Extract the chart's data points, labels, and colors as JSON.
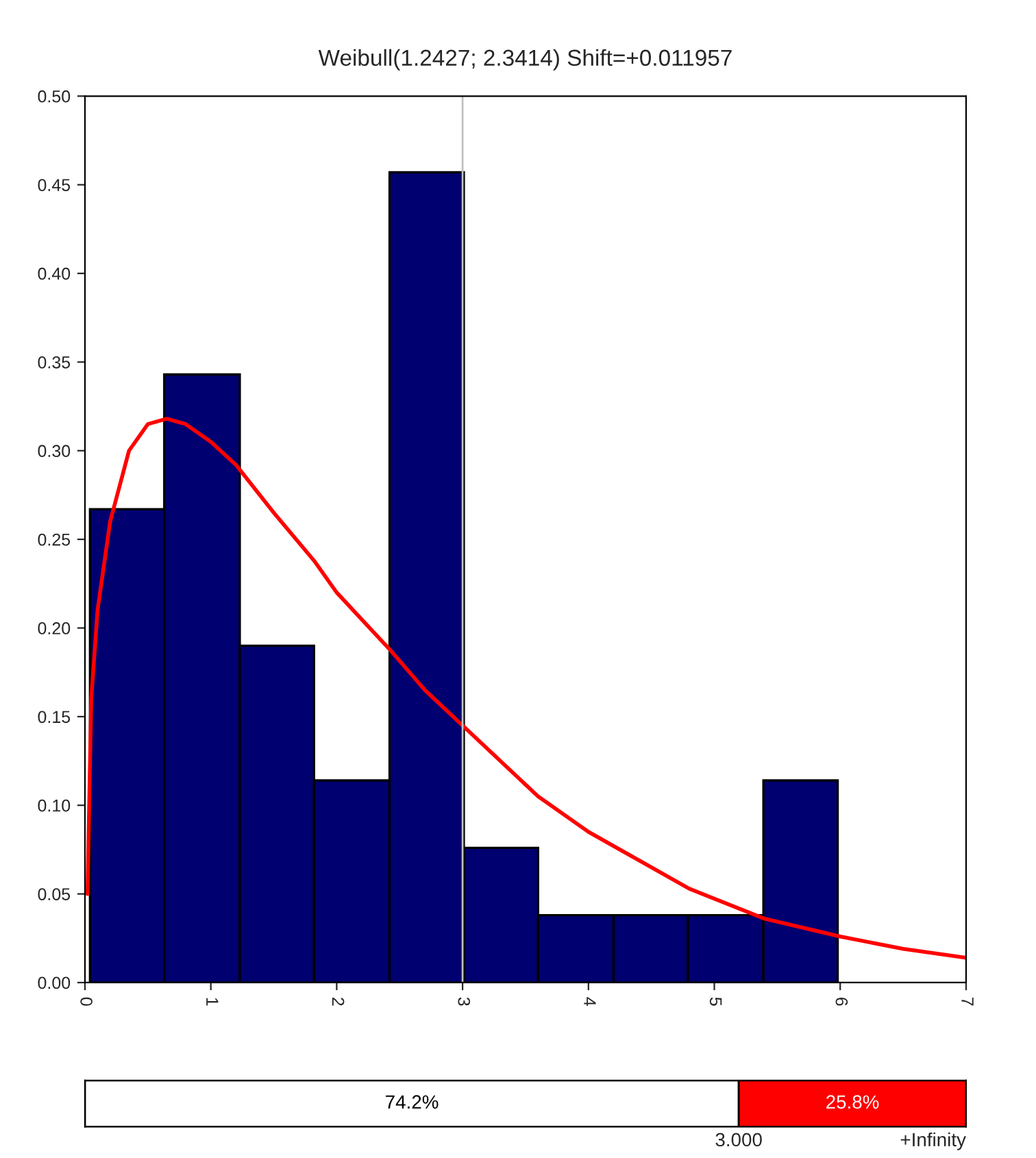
{
  "chart_data": [
    {
      "type": "histogram",
      "title": "Weibull(1.2427; 2.3414) Shift=+0.011957",
      "bins": [
        0.04,
        0.63,
        1.23,
        1.82,
        2.42,
        3.01,
        3.6,
        4.2,
        4.79,
        5.39,
        5.98
      ],
      "values": [
        0.267,
        0.343,
        0.19,
        0.114,
        0.457,
        0.076,
        0.038,
        0.038,
        0.038,
        0.114
      ],
      "color": "#000070",
      "series": [
        {
          "type": "line",
          "color": "#ff0000",
          "x": [
            0.02,
            0.05,
            0.1,
            0.2,
            0.35,
            0.5,
            0.65,
            0.8,
            1.0,
            1.2,
            1.5,
            1.82,
            2.0,
            2.42,
            2.7,
            3.0,
            3.3,
            3.6,
            4.0,
            4.2,
            4.8,
            5.4,
            6.0,
            6.5,
            7.0
          ],
          "values": [
            0.05,
            0.16,
            0.21,
            0.26,
            0.3,
            0.315,
            0.318,
            0.315,
            0.305,
            0.292,
            0.265,
            0.238,
            0.22,
            0.188,
            0.165,
            0.145,
            0.125,
            0.105,
            0.085,
            0.077,
            0.053,
            0.036,
            0.026,
            0.019,
            0.014
          ]
        }
      ],
      "xlim": [
        0,
        7
      ],
      "xticks": [
        0,
        1,
        2,
        3,
        4,
        5,
        6,
        7
      ],
      "ylim": [
        0,
        0.5
      ],
      "yticks": [
        {
          "value": 0,
          "label": "0.00"
        },
        {
          "value": 0.05,
          "label": "0.05"
        },
        {
          "value": 0.1,
          "label": "0.10"
        },
        {
          "value": 0.15,
          "label": "0.15"
        },
        {
          "value": 0.2,
          "label": "0.20"
        },
        {
          "value": 0.25,
          "label": "0.25"
        },
        {
          "value": 0.3,
          "label": "0.30"
        },
        {
          "value": 0.35,
          "label": "0.35"
        },
        {
          "value": 0.4,
          "label": "0.40"
        },
        {
          "value": 0.45,
          "label": "0.45"
        },
        {
          "value": 0.5,
          "label": "0.50"
        }
      ],
      "ref_lines": [
        {
          "axis": "x",
          "value": 3,
          "color": "#c0c0c0"
        }
      ],
      "grid": false,
      "legend": false
    },
    {
      "type": "bar",
      "orientation": "horizontal",
      "stacked": true,
      "categories": [
        null
      ],
      "series": [
        {
          "color": "#ffffff",
          "values": [
            74.2
          ],
          "value_labels": [
            "74.2%"
          ]
        },
        {
          "color": "#ff0000",
          "values": [
            25.8
          ],
          "value_labels": [
            "25.8%"
          ]
        }
      ],
      "xlim": [
        0,
        100
      ],
      "annotations": [
        "3.000",
        "+Infinity"
      ]
    }
  ]
}
